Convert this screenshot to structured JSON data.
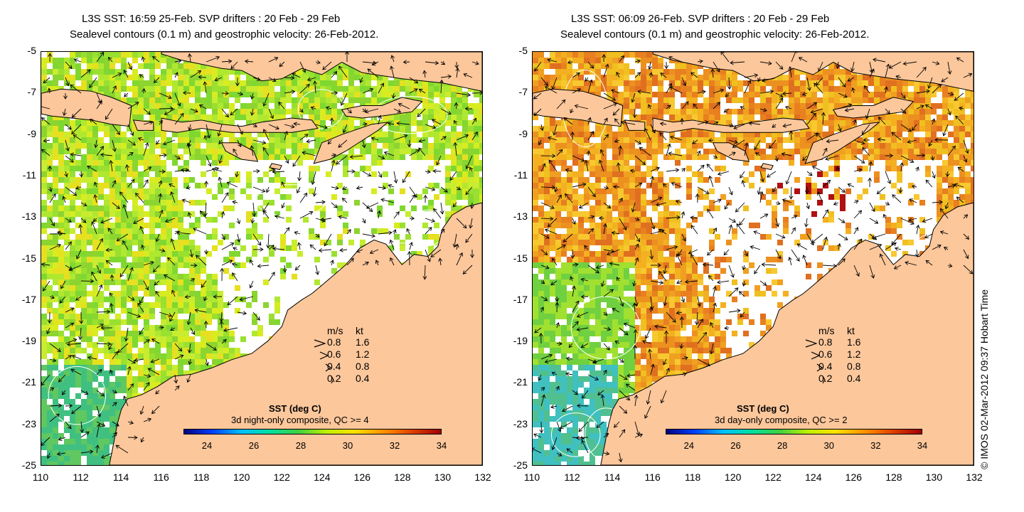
{
  "panels": [
    {
      "title_line1": "L3S SST: 16:59 25-Feb. SVP drifters : 20 Feb - 29 Feb",
      "title_line2": "Sealevel contours (0.1 m) and geostrophic velocity: 26-Feb-2012.",
      "colorbar_title": "SST (deg C)",
      "colorbar_subtitle": "3d night-only composite, QC >= 4",
      "scheme": "night"
    },
    {
      "title_line1": "L3S SST: 06:09 26-Feb. SVP drifters : 20 Feb - 29 Feb",
      "title_line2": "Sealevel contours (0.1 m) and geostrophic velocity: 26-Feb-2012.",
      "colorbar_title": "SST (deg C)",
      "colorbar_subtitle": "3d day-only composite, QC >= 2",
      "scheme": "day"
    }
  ],
  "axes": {
    "lat_ticks": [
      "-5",
      "-7",
      "-9",
      "-11",
      "-13",
      "-15",
      "-17",
      "-19",
      "-21",
      "-23",
      "-25"
    ],
    "lon_ticks": [
      "110",
      "112",
      "114",
      "116",
      "118",
      "120",
      "122",
      "124",
      "126",
      "128",
      "130",
      "132"
    ],
    "lat_range": [
      -25,
      -5
    ],
    "lon_range": [
      110,
      132
    ]
  },
  "velocity_legend": {
    "header_ms": "m/s",
    "header_kt": "kt",
    "rows": [
      {
        "ms": "0.8",
        "kt": "1.6"
      },
      {
        "ms": "0.6",
        "kt": "1.2"
      },
      {
        "ms": "0.4",
        "kt": "0.8"
      },
      {
        "ms": "0.2",
        "kt": "0.4"
      }
    ]
  },
  "colorbar": {
    "ticks": [
      "24",
      "26",
      "28",
      "30",
      "32",
      "34"
    ],
    "range": [
      23,
      34
    ],
    "colors": [
      "#000080",
      "#0040ff",
      "#00c0ff",
      "#00e0a0",
      "#40d040",
      "#c0f000",
      "#ffe000",
      "#ff9000",
      "#e04000",
      "#a00000"
    ]
  },
  "colors": {
    "land": "#fcc79b",
    "coast": "#000000",
    "vectors": "#000000",
    "contours": "#ffffff"
  },
  "credit": "© IMOS 02-Mar-2012 09:37 Hobart Time"
}
